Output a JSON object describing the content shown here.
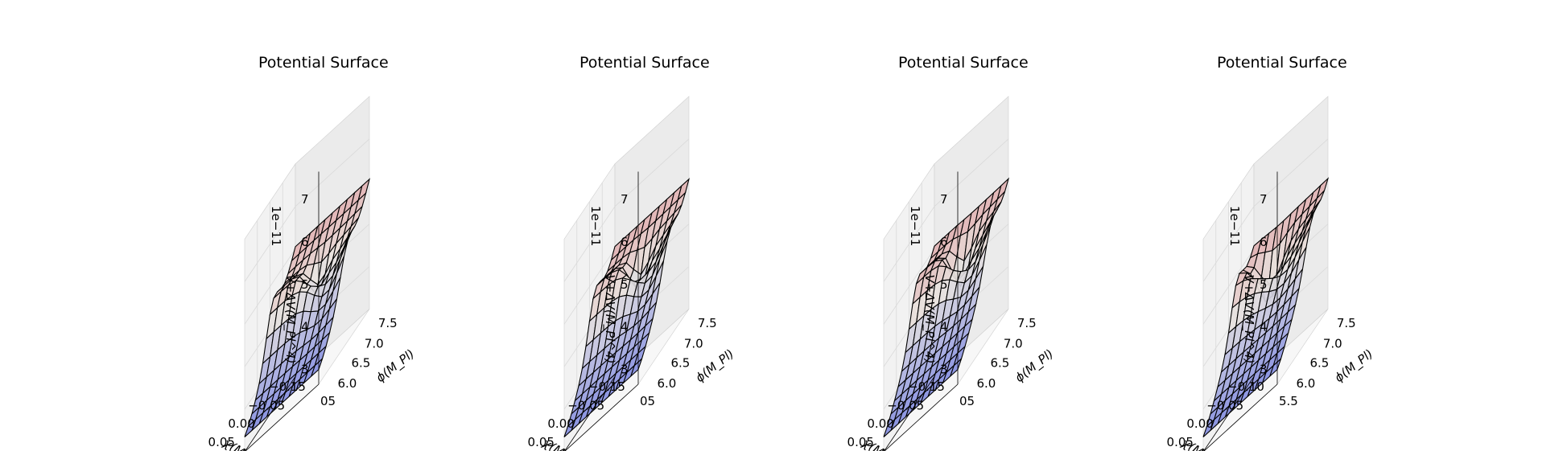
{
  "chart_data": [
    {
      "type": "surface3d",
      "title": "Potential Surface",
      "xlabel": "χ(M_Pl)",
      "ylabel": "ϕ(M_Pl)",
      "zlabel": "V+ΔV(M_Pl^4)",
      "z_offset_text": "1e−11",
      "xlim": [
        -0.15,
        0.05
      ],
      "ylim": [
        5.5,
        7.5
      ],
      "zlim": [
        2.5,
        7.2
      ],
      "x_ticks": [
        "0.05",
        "0.00",
        "−0.05",
        "−0.15"
      ],
      "y_ticks": [
        "6.0",
        "6.5",
        "7.0",
        "7.5"
      ],
      "y_tick_extra": "05",
      "z_ticks": [
        "3",
        "4",
        "5",
        "6",
        "7"
      ],
      "dip_phi": 6.6,
      "dip_depth": 0.55,
      "colormap": "coolwarm",
      "colors": {
        "low": "#6f7ce0",
        "mid": "#e8e3de",
        "high": "#d65f6a",
        "edge": "#000000",
        "pane": "#f2f2f2",
        "grid": "#d9d9d9"
      }
    },
    {
      "type": "surface3d",
      "title": "Potential Surface",
      "xlabel": "χ(M_Pl)",
      "ylabel": "ϕ(M_Pl)",
      "zlabel": "V+ΔV(M_Pl^4)",
      "z_offset_text": "1e−11",
      "xlim": [
        -0.15,
        0.05
      ],
      "ylim": [
        5.5,
        7.5
      ],
      "zlim": [
        2.5,
        7.2
      ],
      "x_ticks": [
        "0.05",
        "0.00",
        "−0.05",
        "−0.15"
      ],
      "y_ticks": [
        "6.0",
        "6.5",
        "7.0",
        "7.5"
      ],
      "y_tick_extra": "05",
      "z_ticks": [
        "3",
        "4",
        "5",
        "6",
        "7"
      ],
      "dip_phi": 6.7,
      "dip_depth": 0.7,
      "colormap": "coolwarm",
      "colors": {
        "low": "#6f7ce0",
        "mid": "#e8e3de",
        "high": "#d65f6a",
        "edge": "#000000",
        "pane": "#f2f2f2",
        "grid": "#d9d9d9"
      }
    },
    {
      "type": "surface3d",
      "title": "Potential Surface",
      "xlabel": "χ(M_Pl)",
      "ylabel": "ϕ(M_Pl)",
      "zlabel": "V+ΔV(M_Pl^4)",
      "z_offset_text": "1e−11",
      "xlim": [
        -0.15,
        0.05
      ],
      "ylim": [
        5.5,
        7.5
      ],
      "zlim": [
        2.5,
        7.2
      ],
      "x_ticks": [
        "0.05",
        "0.00",
        "−0.05",
        "−0.15"
      ],
      "y_ticks": [
        "6.0",
        "6.5",
        "7.0",
        "7.5"
      ],
      "y_tick_extra": "05",
      "z_ticks": [
        "3",
        "4",
        "5",
        "6",
        "7"
      ],
      "dip_phi": 6.8,
      "dip_depth": 0.85,
      "colormap": "coolwarm",
      "colors": {
        "low": "#6f7ce0",
        "mid": "#e8e3de",
        "high": "#d65f6a",
        "edge": "#000000",
        "pane": "#f2f2f2",
        "grid": "#d9d9d9"
      }
    },
    {
      "type": "surface3d",
      "title": "Potential Surface",
      "xlabel": "χ(M_Pl)",
      "ylabel": "ϕ(M_Pl)",
      "zlabel": "V+ΔV(M_Pl^4)",
      "z_offset_text": "1e−11",
      "xlim": [
        -0.1,
        0.05
      ],
      "ylim": [
        5.5,
        7.5
      ],
      "zlim": [
        2.5,
        7.2
      ],
      "x_ticks": [
        "0.05",
        "0.00",
        "−0.05",
        "−0.10"
      ],
      "y_ticks": [
        "6.0",
        "6.5",
        "7.0",
        "7.5"
      ],
      "y_tick_extra": "5.5",
      "z_ticks": [
        "3",
        "4",
        "5",
        "6",
        "7"
      ],
      "dip_phi": 6.85,
      "dip_depth": 1.0,
      "colormap": "coolwarm",
      "colors": {
        "low": "#6f7ce0",
        "mid": "#e8e3de",
        "high": "#d65f6a",
        "edge": "#000000",
        "pane": "#f2f2f2",
        "grid": "#d9d9d9"
      }
    }
  ]
}
